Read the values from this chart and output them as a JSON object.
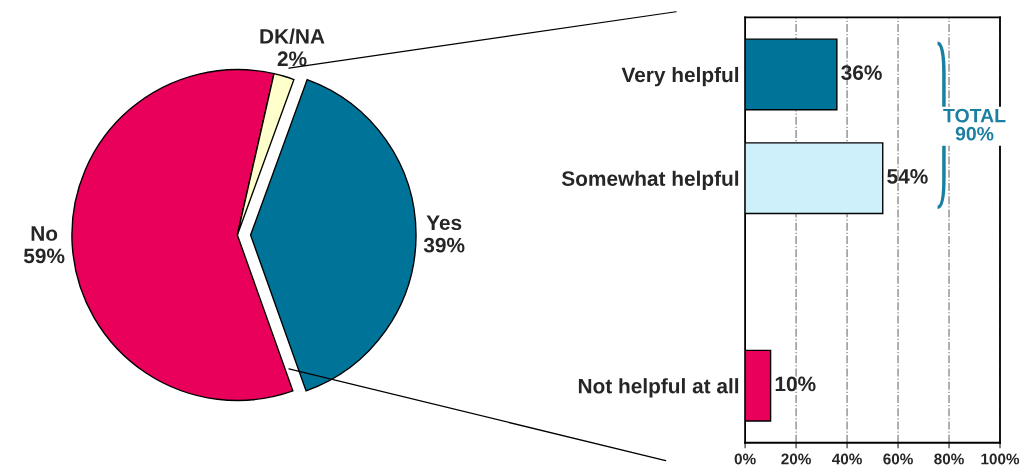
{
  "chart_data": [
    {
      "type": "pie",
      "categories": [
        "Yes",
        "No",
        "DK/NA"
      ],
      "values": [
        39,
        59,
        2
      ],
      "colors": [
        "#007399",
        "#e8005a",
        "#ffffcc"
      ],
      "value_labels": [
        "39%",
        "59%",
        "2%"
      ]
    },
    {
      "type": "bar",
      "orientation": "horizontal",
      "categories": [
        "Very helpful",
        "Somewhat helpful",
        null,
        "Not helpful at all"
      ],
      "series": [
        {
          "values": [
            36,
            54,
            null,
            10
          ],
          "colors": [
            "#007399",
            "#cef0fa",
            "#ffffff",
            "#e8005a"
          ],
          "value_labels": [
            "36%",
            "54%",
            null,
            "10%"
          ]
        }
      ],
      "xlim": [
        0,
        100
      ],
      "xticks": [
        {
          "value": 0,
          "label": "0%"
        },
        {
          "value": 20,
          "label": "20%"
        },
        {
          "value": 40,
          "label": "40%"
        },
        {
          "value": 60,
          "label": "60%"
        },
        {
          "value": 80,
          "label": "80%"
        },
        {
          "value": 100,
          "label": "100%"
        }
      ],
      "grid": "x",
      "annotations": [
        "TOTAL\n90%"
      ]
    }
  ]
}
